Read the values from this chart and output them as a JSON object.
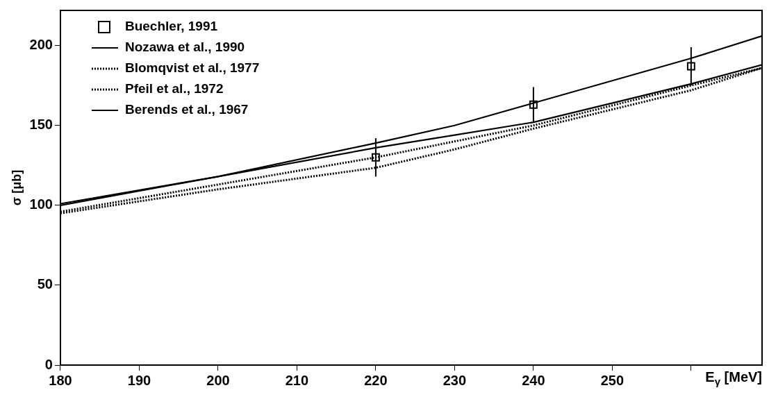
{
  "chart_data": {
    "type": "line",
    "xlabel": "E$_{γ}$ [MeV]",
    "ylabel": "σ [μb]",
    "xlim": [
      180,
      269
    ],
    "ylim": [
      0,
      222
    ],
    "xticks": [
      180,
      190,
      200,
      210,
      220,
      230,
      240,
      250,
      {
        "value": 260,
        "label": null
      }
    ],
    "yticks": [
      0,
      50,
      100,
      150,
      200
    ],
    "grid": false,
    "legend": "top left",
    "marker": "none",
    "series": [
      {
        "name": "Buechler, 1991",
        "type": "scatter",
        "marker": "square",
        "color": "#000000",
        "x": [
          220,
          240,
          260
        ],
        "values": [
          130,
          163,
          187
        ],
        "errors": [
          12,
          11,
          12
        ]
      },
      {
        "name": "Nozawa et al., 1990",
        "color": "#000000",
        "line_style": "solid",
        "x": [
          180,
          200,
          220,
          230,
          240,
          260,
          269
        ],
        "values": [
          100,
          118,
          139,
          150,
          164,
          192,
          206
        ]
      },
      {
        "name": "Blomqvist et al., 1977",
        "color": "#000000",
        "line_style": "dotted",
        "x": [
          180,
          200,
          220,
          230,
          240,
          260,
          269
        ],
        "values": [
          96,
          113,
          130,
          140,
          150,
          175,
          186
        ]
      },
      {
        "name": "Pfeil et al., 1972",
        "color": "#000000",
        "line_style": "dotted",
        "x": [
          180,
          200,
          220,
          230,
          240,
          260,
          269
        ],
        "values": [
          95,
          110,
          123.5,
          135,
          148,
          172,
          186
        ]
      },
      {
        "name": "Berends et al., 1967",
        "color": "#000000",
        "line_style": "solid",
        "x": [
          180,
          200,
          220,
          230,
          240,
          260,
          269
        ],
        "values": [
          101,
          118,
          136,
          144,
          152,
          176,
          188
        ]
      }
    ]
  }
}
